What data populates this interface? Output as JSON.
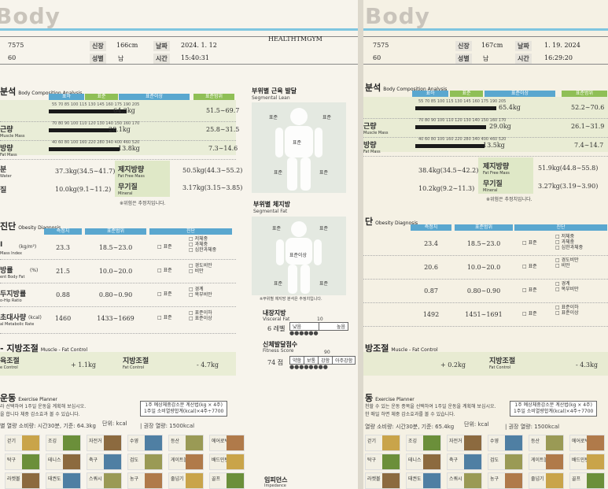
{
  "brand": "Body",
  "left": {
    "id": "7575",
    "age": "60",
    "height_label": "신장",
    "height_value": "166cm",
    "gender_label": "성별",
    "gender_value": "남",
    "date_label": "날짜",
    "date_value": "2024. 1. 12",
    "time_label": "시간",
    "time_value": "15:40:31",
    "gym": "HEALTHTMGYM",
    "composition": {
      "title": "분석",
      "subtitle": "Body Composition Analysis",
      "headers": [
        "표하",
        "표준",
        "표준이상",
        "표준범위"
      ],
      "scale_weight": "55  70  85  100  115  130  145  160  175  190  205",
      "scale_muscle": "70  80  90  100  110  120  130  140  150  160  170",
      "scale_fat": "40  60  80  100  160  220  280  340  400  460  520",
      "rows": [
        {
          "label": "",
          "sublabel": "",
          "value": "64.3kg",
          "range": "51.5∼69.7",
          "fill": 0.55
        },
        {
          "label": "근량",
          "sublabel": "Muscle Mass",
          "value": "28.1kg",
          "range": "25.8∼31.5",
          "fill": 0.48
        },
        {
          "label": "방량",
          "sublabel": "Fat Mass",
          "value": "13.8kg",
          "range": "7.3∼14.6",
          "fill": 0.5
        }
      ],
      "water_label": "분",
      "water_sub": "Water",
      "water_value": "37.3kg(34.5∼41.7)",
      "protein_label": "질",
      "protein_value": "10.0kg(9.1∼11.2)",
      "ffm_label": "제지방량",
      "ffm_sub": "Fat Free Mass",
      "ffm_value": "50.5kg(44.3∼55.2)",
      "mineral_label": "무기질",
      "mineral_sub": "Mineral",
      "mineral_value": "3.17kg(3.15∼3.85)",
      "note": "※위험은 추정치입니다."
    },
    "segmental": {
      "lean_title": "부위별 근육 발달",
      "lean_sub": "Segmental Lean",
      "fat_title": "부위별 체지방",
      "fat_sub": "Segmental Fat",
      "std": "표준",
      "std_over": "표준이상",
      "note": "※부위별 체지방 분석은 추정치입니다."
    },
    "obesity": {
      "title": "진단",
      "subtitle": "Obesity Diagnosis",
      "headers": [
        "측정치",
        "표준범위",
        "진단"
      ],
      "rows": [
        {
          "label": "I",
          "unit": "(kg/m²)",
          "sub": "Mass Index",
          "value": "23.3",
          "range": "18.5∼23.0",
          "mid": "표준",
          "options": [
            "저체중",
            "과체중",
            "심한과체중"
          ]
        },
        {
          "label": "방률",
          "unit": "(%)",
          "sub": "ent Body Fat",
          "value": "21.5",
          "range": "10.0∼20.0",
          "mid": "표준",
          "options": [
            "경도비만",
            "비만"
          ]
        },
        {
          "label": "두지방률",
          "unit": "",
          "sub": "o-Hip Ratio",
          "value": "0.88",
          "range": "0.80∼0.90",
          "mid": "표준",
          "options": [
            "경계",
            "복부비만"
          ]
        },
        {
          "label": "초대사량",
          "unit": "(kcal)",
          "sub": "al Metabolic Rate",
          "value": "1460",
          "range": "1433∼1669",
          "mid": "표준",
          "options": [
            "표준이하",
            "표준이상"
          ]
        }
      ]
    },
    "visceral": {
      "title": "내장지방",
      "sub": "Visceral Fat",
      "level": "6 레벨",
      "low": "낮음",
      "high": "높음",
      "mark": "10"
    },
    "fitness": {
      "title": "신체발달점수",
      "sub": "Fitness Score",
      "score": "74 점",
      "scale": [
        "약함",
        "보통",
        "강함",
        "아주강함"
      ],
      "mark": "90"
    },
    "muscle_fat": {
      "title": "- 지방조절",
      "subtitle": "Muscle - Fat Control",
      "muscle_label": "육조절",
      "muscle_sub": "e Control",
      "muscle_value": "+ 1.1kg",
      "fat_label": "지방조절",
      "fat_sub": "Fat Control",
      "fat_value": "- 4.7kg"
    },
    "exercise": {
      "title": "운동",
      "subtitle": "Exercise Planner",
      "desc1": "라 선택하여 1주일 운동을 계획해 보십시오.",
      "desc2": "을 합니다 체중 감소효과 볼 수 있습니다.",
      "formula1": "1주 예상체중감소분 계산법(kg × 4주)",
      "formula2": "1주일 소비열량합계(kcal)×4주÷7700",
      "consume": "별 열량 소비량: 시간30분, 기준: 64.3kg",
      "unit": "단위: kcal",
      "target": "| 권장 열량: 1500kcal",
      "impedance": "임피던스",
      "impedance_sub": "Impedance",
      "activities": [
        {
          "name": "걷기"
        },
        {
          "name": "조깅"
        },
        {
          "name": "자전거"
        },
        {
          "name": "수영"
        },
        {
          "name": "등산"
        },
        {
          "name": "에어로빅"
        },
        {
          "name": "탁구"
        },
        {
          "name": "테니스"
        },
        {
          "name": "축구"
        },
        {
          "name": "검도"
        },
        {
          "name": "게이트볼"
        },
        {
          "name": "배드민턴"
        },
        {
          "name": "라켓볼"
        },
        {
          "name": "태권도"
        },
        {
          "name": "스쿼시"
        },
        {
          "name": "농구"
        },
        {
          "name": "줄넘기"
        },
        {
          "name": "골프"
        }
      ]
    }
  },
  "right": {
    "id": "7575",
    "age": "60",
    "height_label": "신장",
    "height_value": "167cm",
    "gender_label": "성별",
    "gender_value": "남",
    "date_label": "날짜",
    "date_value": "1. 19. 2024",
    "time_label": "시간",
    "time_value": "16:29:20",
    "composition": {
      "title": "분석",
      "subtitle": "Body Composition Analysis",
      "headers": [
        "표하",
        "표준",
        "표준이상",
        "표준범위"
      ],
      "rows": [
        {
          "label": "",
          "sublabel": "",
          "value": "65.4kg",
          "range": "52.2∼70.6",
          "fill": 0.57
        },
        {
          "label": "근량",
          "sublabel": "Muscle Mass",
          "value": "29.0kg",
          "range": "26.1∼31.9",
          "fill": 0.5
        },
        {
          "label": "방량",
          "sublabel": "Fat Mass",
          "value": "13.5kg",
          "range": "7.4∼14.7",
          "fill": 0.49
        }
      ],
      "water_value": "38.4kg(34.5∼42.2)",
      "protein_value": "10.2kg(9.2∼11.3)",
      "ffm_label": "제지방량",
      "ffm_sub": "Fat Free Mass",
      "ffm_value": "51.9kg(44.8∼55.8)",
      "mineral_label": "무기질",
      "mineral_sub": "Mineral",
      "mineral_value": "3.27kg(3.19∼3.90)",
      "note": "※위험은 추정치입니다."
    },
    "obesity": {
      "title": "단",
      "subtitle": "Obesity Diagnosis",
      "headers": [
        "측정치",
        "표준범위",
        "진단"
      ],
      "rows": [
        {
          "value": "23.4",
          "range": "18.5∼23.0",
          "mid": "표준",
          "options": [
            "저체중",
            "과체중",
            "심한과체중"
          ]
        },
        {
          "value": "20.6",
          "range": "10.0∼20.0",
          "mid": "표준",
          "options": [
            "경도비만",
            "비만"
          ]
        },
        {
          "value": "0.87",
          "range": "0.80∼0.90",
          "mid": "표준",
          "options": [
            "경계",
            "복부비만"
          ]
        },
        {
          "value": "1492",
          "range": "1451∼1691",
          "mid": "표준",
          "options": [
            "표준이하",
            "표준이상"
          ]
        }
      ]
    },
    "muscle_fat": {
      "title": "방조절",
      "subtitle": "Muscle - Fat Control",
      "muscle_value": "+ 0.2kg",
      "fat_label": "지방조절",
      "fat_sub": "Fat Control",
      "fat_value": "- 4.3kg"
    },
    "exercise": {
      "title": "동",
      "subtitle": "Exercise Planner",
      "desc1": "천할 수 있는 운동 종목을 선택하여 1주일 운동을 계획해 보십시오.",
      "desc2": "한 매일 하면 체중 감소효과를 볼 수 있습니다.",
      "formula1": "1주 예상체중감소분 계산법(kg × 4주)",
      "formula2": "1주일 소비열량합계(kcal)×4주÷7700",
      "consume": "열량 소비량: 시간30분, 기준: 65.4kg",
      "unit": "단위: kcal",
      "target": "| 권장 열량: 1500kcal",
      "activities": [
        {
          "name": "걷기"
        },
        {
          "name": "조깅"
        },
        {
          "name": "자전거"
        },
        {
          "name": "수영"
        },
        {
          "name": "등산"
        },
        {
          "name": "에어로빅"
        },
        {
          "name": "탁구"
        },
        {
          "name": "테니스"
        },
        {
          "name": "축구"
        },
        {
          "name": "검도"
        },
        {
          "name": "게이트볼"
        },
        {
          "name": "배드민턴"
        },
        {
          "name": "라켓볼"
        },
        {
          "name": "태권도"
        },
        {
          "name": "스쿼시"
        },
        {
          "name": "농구"
        },
        {
          "name": "줄넘기"
        },
        {
          "name": "골프"
        }
      ]
    }
  },
  "colors": {
    "header_blue": "#5aa7cf",
    "header_green": "#8fbf56",
    "band_green": "#dfe8c7",
    "accent_cyan": "#7fc6e0"
  }
}
